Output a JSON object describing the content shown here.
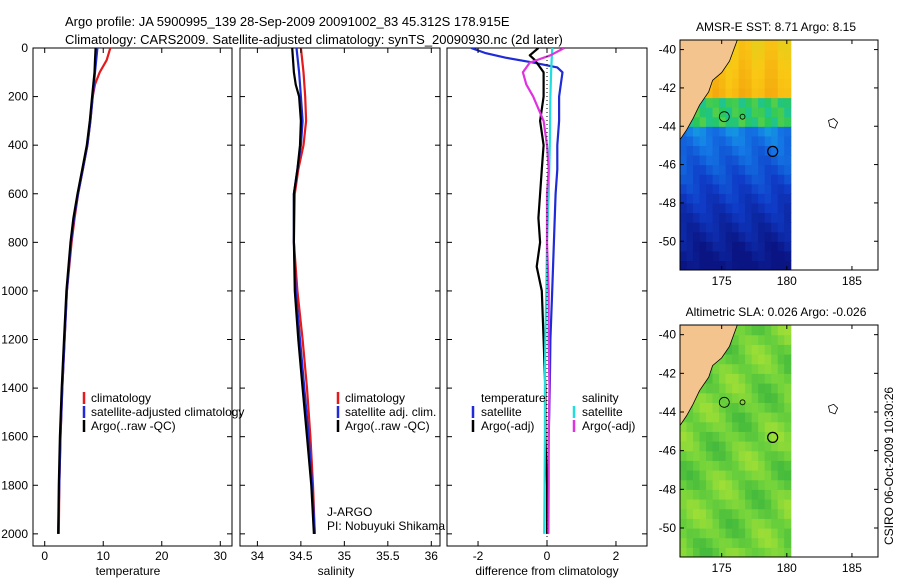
{
  "header": {
    "line1": "Argo profile: JA 5900995_139 28-Sep-2009 20091002_83 45.312S 178.915E",
    "line2": "Climatology: CARS2009. Satellite-adjusted climatology: synTS_20090930.nc (2d later)"
  },
  "colors": {
    "red": "#e41a1c",
    "blue": "#1f2bd6",
    "black": "#000000",
    "cyan": "#22dddd",
    "magenta": "#e033e0",
    "land": "#f4c48e"
  },
  "chart_data": [
    {
      "id": "temperature",
      "type": "line",
      "xlabel": "temperature",
      "ylabel": "",
      "xlim": [
        -2,
        32
      ],
      "ylim": [
        2050,
        0
      ],
      "xticks": [
        0,
        10,
        20,
        30
      ],
      "xtick_labels": [
        "0",
        "10",
        "20",
        "30"
      ],
      "yticks": [
        0,
        200,
        400,
        600,
        800,
        1000,
        1200,
        1400,
        1600,
        1800,
        2000
      ],
      "ytick_labels": [
        "0",
        "200",
        "400",
        "600",
        "800",
        "1000",
        "1200",
        "1400",
        "1600",
        "1800",
        "2000"
      ],
      "legend": [
        {
          "label": "climatology",
          "color": "red"
        },
        {
          "label": "satellite-adjusted climatology",
          "color": "blue"
        },
        {
          "label": "Argo(..raw -QC)",
          "color": "black"
        }
      ],
      "series": [
        {
          "name": "climatology",
          "color": "red",
          "depth": [
            0,
            50,
            100,
            150,
            200,
            300,
            400,
            500,
            600,
            700,
            800,
            1000,
            1200,
            1400,
            1600,
            1800,
            2000
          ],
          "values": [
            11.2,
            10.6,
            9.4,
            8.6,
            8.2,
            7.8,
            7.3,
            6.5,
            5.7,
            5.1,
            4.6,
            3.8,
            3.4,
            3.0,
            2.7,
            2.5,
            2.4
          ]
        },
        {
          "name": "satellite-adjusted climatology",
          "color": "blue",
          "depth": [
            0,
            50,
            100,
            150,
            200,
            300,
            400,
            500,
            600,
            700,
            800,
            1000,
            1200,
            1400,
            1600,
            1800,
            2000
          ],
          "values": [
            9.0,
            8.8,
            8.6,
            8.4,
            8.2,
            7.8,
            7.3,
            6.5,
            5.7,
            5.0,
            4.5,
            3.8,
            3.4,
            3.0,
            2.7,
            2.5,
            2.3
          ]
        },
        {
          "name": "Argo(..raw -QC)",
          "color": "black",
          "depth": [
            0,
            50,
            100,
            150,
            200,
            300,
            400,
            500,
            600,
            700,
            800,
            1000,
            1200,
            1400,
            1600,
            1800,
            2000
          ],
          "values": [
            8.7,
            8.6,
            8.5,
            8.3,
            8.1,
            7.7,
            7.2,
            6.4,
            5.6,
            4.9,
            4.4,
            3.7,
            3.3,
            2.9,
            2.6,
            2.4,
            2.3
          ]
        }
      ]
    },
    {
      "id": "salinity",
      "type": "line",
      "xlabel": "salinity",
      "ylabel": "",
      "xlim": [
        33.8,
        36.1
      ],
      "ylim": [
        2050,
        0
      ],
      "xticks": [
        34,
        34.5,
        35,
        35.5,
        36
      ],
      "xtick_labels": [
        "34",
        "34.5",
        "35",
        "35.5",
        "36"
      ],
      "legend": [
        {
          "label": "climatology",
          "color": "red"
        },
        {
          "label": "satellite adj. clim.",
          "color": "blue"
        },
        {
          "label": "Argo(..raw -QC)",
          "color": "black"
        }
      ],
      "annotations": [
        "J-ARGO",
        "PI: Nobuyuki Shikama"
      ],
      "series": [
        {
          "name": "climatology",
          "color": "red",
          "depth": [
            0,
            100,
            200,
            300,
            400,
            500,
            600,
            800,
            1000,
            1200,
            1400,
            1600,
            1800,
            2000
          ],
          "values": [
            34.5,
            34.53,
            34.55,
            34.56,
            34.53,
            34.47,
            34.43,
            34.42,
            34.46,
            34.52,
            34.57,
            34.61,
            34.64,
            34.66
          ]
        },
        {
          "name": "satellite adj. clim.",
          "color": "blue",
          "depth": [
            0,
            100,
            200,
            300,
            400,
            500,
            600,
            800,
            1000,
            1200,
            1400,
            1600,
            1800,
            2000
          ],
          "values": [
            34.45,
            34.48,
            34.5,
            34.52,
            34.5,
            34.46,
            34.42,
            34.42,
            34.44,
            34.49,
            34.54,
            34.59,
            34.63,
            34.66
          ]
        },
        {
          "name": "Argo(..raw -QC)",
          "color": "black",
          "depth": [
            0,
            100,
            150,
            200,
            300,
            400,
            500,
            600,
            800,
            1000,
            1200,
            1400,
            1600,
            1800,
            2000
          ],
          "values": [
            34.4,
            34.42,
            34.44,
            34.48,
            34.5,
            34.49,
            34.46,
            34.42,
            34.42,
            34.43,
            34.47,
            34.52,
            34.57,
            34.62,
            34.65
          ]
        }
      ]
    },
    {
      "id": "difference",
      "type": "line",
      "xlabel": "difference from climatology",
      "ylabel": "",
      "xlim": [
        -2.9,
        2.9
      ],
      "ylim": [
        2050,
        0
      ],
      "xticks": [
        -2,
        0,
        2
      ],
      "xtick_labels": [
        "-2",
        "0",
        "2"
      ],
      "legend": [
        {
          "label": "temperature",
          "color": "none"
        },
        {
          "label": "satellite",
          "color": "blue"
        },
        {
          "label": "Argo(-adj)",
          "color": "black"
        },
        {
          "label": "salinity",
          "color": "none"
        },
        {
          "label": "satellite",
          "color": "cyan"
        },
        {
          "label": "Argo(-adj)",
          "color": "magenta"
        }
      ],
      "series": [
        {
          "name": "temperature satellite",
          "color": "blue",
          "depth": [
            0,
            20,
            40,
            60,
            80,
            100,
            150,
            200,
            300,
            400,
            500,
            600,
            800,
            1000,
            1200,
            1400,
            1600,
            1800,
            2000
          ],
          "values": [
            -2.2,
            -1.8,
            -1.2,
            -0.4,
            0.3,
            0.45,
            0.4,
            0.35,
            0.35,
            0.3,
            0.3,
            0.25,
            0.2,
            0.15,
            0.1,
            0.08,
            0.05,
            0.03,
            0.02
          ]
        },
        {
          "name": "temperature Argo(-adj)",
          "color": "black",
          "depth": [
            0,
            30,
            50,
            80,
            100,
            150,
            200,
            300,
            400,
            500,
            600,
            700,
            800,
            900,
            1000,
            1200,
            1400,
            1600,
            1800,
            2000
          ],
          "values": [
            -0.25,
            -0.5,
            -0.35,
            -0.2,
            -0.1,
            -0.1,
            -0.1,
            -0.2,
            -0.1,
            -0.15,
            -0.2,
            -0.25,
            -0.2,
            -0.3,
            -0.15,
            -0.1,
            -0.05,
            -0.05,
            0.0,
            0.0
          ]
        },
        {
          "name": "salinity satellite",
          "color": "cyan",
          "depth": [
            0,
            100,
            200,
            400,
            600,
            800,
            1000,
            1200,
            1400,
            1600,
            1800,
            2000
          ],
          "values": [
            0.15,
            0.12,
            0.1,
            0.08,
            0.05,
            0.0,
            -0.02,
            -0.05,
            -0.06,
            -0.06,
            -0.07,
            -0.08
          ]
        },
        {
          "name": "salinity Argo(-adj)",
          "color": "magenta",
          "depth": [
            0,
            30,
            60,
            100,
            150,
            200,
            300,
            400,
            500,
            600,
            800,
            1000,
            1200,
            1400,
            1600,
            1800,
            2000
          ],
          "values": [
            0.5,
            0.1,
            -0.5,
            -0.7,
            -0.6,
            -0.4,
            -0.1,
            0.0,
            0.05,
            0.0,
            0.0,
            0.05,
            0.05,
            0.07,
            0.05,
            0.05,
            0.04
          ]
        }
      ]
    },
    {
      "id": "sst_map",
      "type": "heatmap",
      "title": "AMSR-E SST: 8.71  Argo: 8.15",
      "xlim": [
        171.8,
        187
      ],
      "ylim": [
        -51.5,
        -39.5
      ],
      "data_lon_range": [
        171.8,
        180
      ],
      "xticks": [
        175,
        180,
        185
      ],
      "xtick_labels": [
        "175",
        "180",
        "185"
      ],
      "yticks": [
        -40,
        -42,
        -44,
        -46,
        -48,
        -50
      ],
      "ytick_labels": [
        "-40",
        "-42",
        "-44",
        "-46",
        "-48",
        "-50"
      ],
      "argo_position": {
        "lon": 178.915,
        "lat": -45.312
      }
    },
    {
      "id": "sla_map",
      "type": "heatmap",
      "title": "Altimetric SLA: 0.026  Argo: -0.026",
      "xlim": [
        171.8,
        187
      ],
      "ylim": [
        -51.5,
        -39.5
      ],
      "data_lon_range": [
        171.8,
        180
      ],
      "xticks": [
        175,
        180,
        185
      ],
      "xtick_labels": [
        "175",
        "180",
        "185"
      ],
      "yticks": [
        -40,
        -42,
        -44,
        -46,
        -48,
        -50
      ],
      "ytick_labels": [
        "-40",
        "-42",
        "-44",
        "-46",
        "-48",
        "-50"
      ],
      "argo_position": {
        "lon": 178.915,
        "lat": -45.312
      }
    }
  ],
  "footer": {
    "credit": "CSIRO 06-Oct-2009 10:30:26"
  }
}
